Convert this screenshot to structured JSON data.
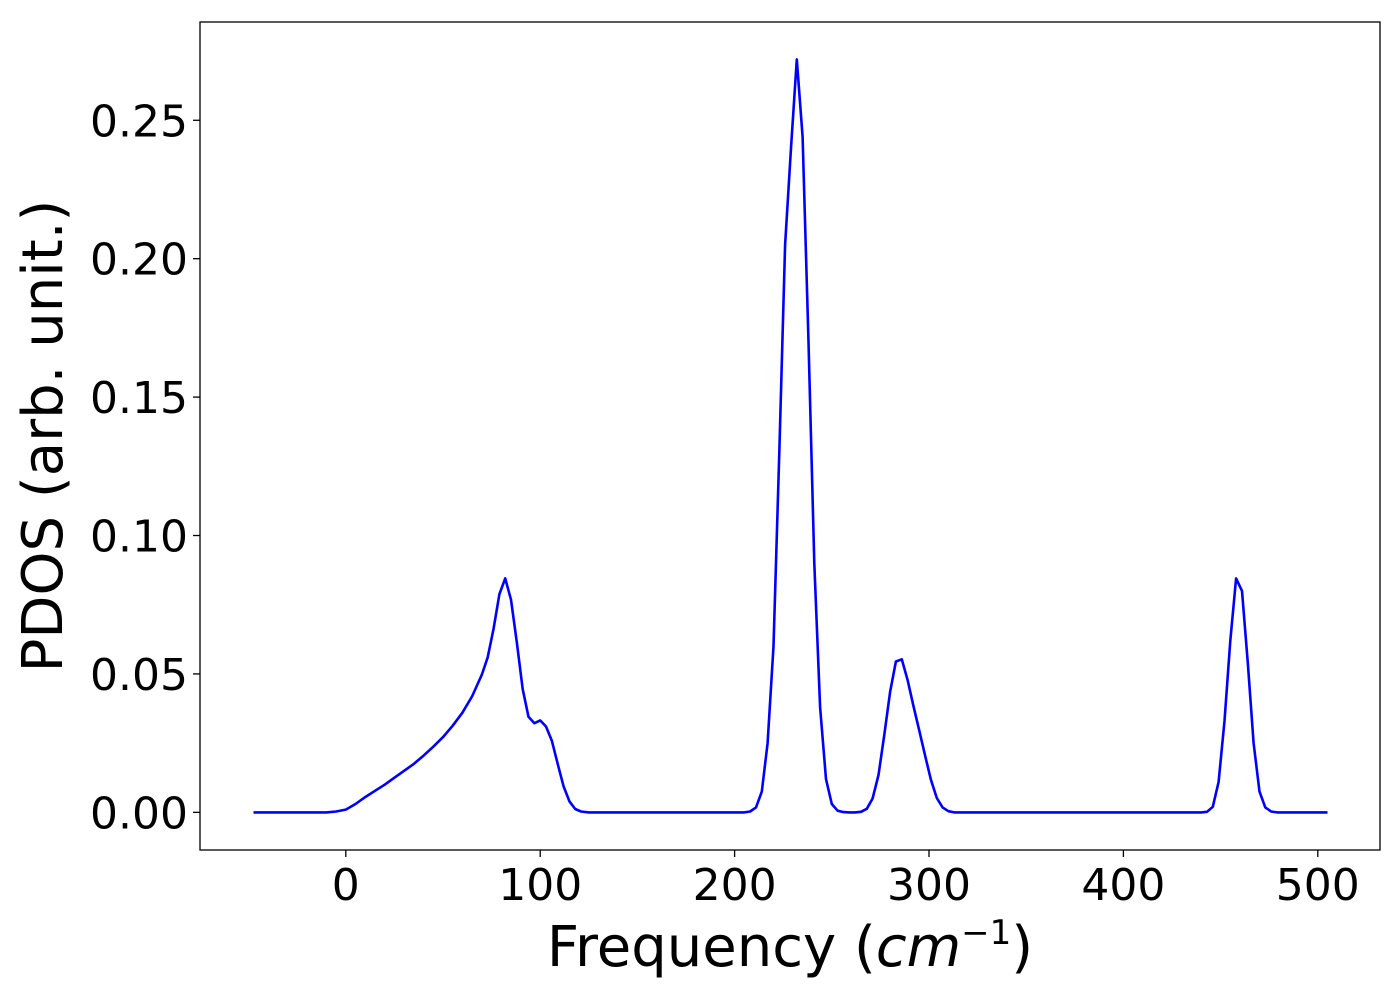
{
  "chart_data": {
    "type": "line",
    "title": "",
    "xlabel": "Frequency (",
    "xlabel_math": "cm",
    "xlabel_exp": "−1",
    "xlabel_close": ")",
    "ylabel": "PDOS (arb. unit.)",
    "xlim": [
      -75,
      532
    ],
    "ylim": [
      -0.0136,
      0.2855
    ],
    "xticks": [
      0,
      100,
      200,
      300,
      400,
      500
    ],
    "xtick_labels": [
      "0",
      "100",
      "200",
      "300",
      "400",
      "500"
    ],
    "yticks": [
      0.0,
      0.05,
      0.1,
      0.15,
      0.2,
      0.25
    ],
    "ytick_labels": [
      "0.00",
      "0.05",
      "0.10",
      "0.15",
      "0.20",
      "0.25"
    ],
    "grid": false,
    "legend": false,
    "series": [
      {
        "color": "#0000ff",
        "x": [
          -47.5,
          -40,
          -30,
          -20,
          -10,
          -5,
          0,
          5,
          10,
          15,
          20,
          25,
          30,
          35,
          40,
          45,
          50,
          55,
          60,
          65,
          70,
          73,
          76,
          79,
          82,
          85,
          88,
          91,
          94,
          97,
          100,
          103,
          106,
          109,
          112,
          115,
          118,
          121,
          125,
          130,
          140,
          150,
          160,
          170,
          180,
          190,
          200,
          205,
          208,
          211,
          214,
          217,
          220,
          223,
          226,
          229,
          232,
          235,
          238,
          241,
          244,
          247,
          250,
          253,
          256,
          259,
          262,
          265,
          268,
          271,
          274,
          277,
          280,
          283,
          286,
          289,
          292,
          295,
          298,
          301,
          304,
          307,
          310,
          313,
          320,
          330,
          340,
          350,
          360,
          370,
          380,
          390,
          400,
          410,
          420,
          430,
          440,
          443,
          446,
          449,
          452,
          455,
          458,
          461,
          464,
          467,
          470,
          473,
          476,
          479,
          482,
          490,
          500,
          505
        ],
        "y": [
          0.0,
          0.0,
          0.0,
          0.0,
          0.0,
          0.0003,
          0.001,
          0.003,
          0.0055,
          0.0078,
          0.01,
          0.0125,
          0.015,
          0.0175,
          0.0205,
          0.0237,
          0.0272,
          0.0313,
          0.036,
          0.042,
          0.0498,
          0.056,
          0.0662,
          0.0788,
          0.0845,
          0.0768,
          0.0612,
          0.0445,
          0.0345,
          0.0322,
          0.0332,
          0.031,
          0.0258,
          0.0175,
          0.0095,
          0.004,
          0.0012,
          0.0003,
          0.0,
          0.0,
          0.0,
          0.0,
          0.0,
          0.0,
          0.0,
          0.0,
          0.0,
          0.0,
          0.0003,
          0.0018,
          0.0075,
          0.025,
          0.06,
          0.13,
          0.205,
          0.24,
          0.272,
          0.244,
          0.17,
          0.09,
          0.038,
          0.012,
          0.003,
          0.0006,
          0.0001,
          0.0,
          0.0,
          0.0002,
          0.0013,
          0.005,
          0.0135,
          0.028,
          0.0435,
          0.0545,
          0.0553,
          0.0478,
          0.0385,
          0.0295,
          0.0205,
          0.0118,
          0.0052,
          0.0018,
          0.0004,
          0.0,
          0.0,
          0.0,
          0.0,
          0.0,
          0.0,
          0.0,
          0.0,
          0.0,
          0.0,
          0.0,
          0.0,
          0.0,
          0.0,
          0.0002,
          0.002,
          0.011,
          0.033,
          0.062,
          0.0845,
          0.08,
          0.054,
          0.025,
          0.0075,
          0.0018,
          0.0003,
          0.0,
          0.0,
          0.0,
          0.0,
          0.0
        ]
      }
    ]
  }
}
